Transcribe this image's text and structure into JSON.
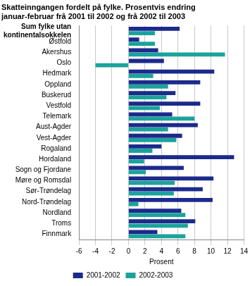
{
  "chart_data": {
    "type": "bar",
    "orientation": "horizontal",
    "title": [
      "Skatteinngangen fordelt på fylke. Prosentvis endring",
      "januar-februar frå 2001 til 2002 og frå 2002 til 2003"
    ],
    "x_label": "Prosent",
    "categories": [
      "Sum fylke utan kontinentalsokkelen",
      "Østfold",
      "Akershus",
      "Oslo",
      "Hedmark",
      "Oppland",
      "Buskerud",
      "Vestfold",
      "Telemark",
      "Aust-Agder",
      "Vest-Agder",
      "Rogaland",
      "Hordaland",
      "Sogn og Fjordane",
      "Møre og Romsdal",
      "Sør-Trøndelag",
      "Nord-Trøndelag",
      "Nordland",
      "Troms",
      "Finnmark"
    ],
    "series": [
      {
        "name": "2001-2002",
        "color": "#1c2a8c",
        "values": [
          6.2,
          1.3,
          3.6,
          4.3,
          10.4,
          8.7,
          5.7,
          8.7,
          5.3,
          8.4,
          6.5,
          4.0,
          12.8,
          6.7,
          10.3,
          9.0,
          10.2,
          6.4,
          8.1,
          3.5
        ]
      },
      {
        "name": "2002-2003",
        "color": "#1aa39c",
        "values": [
          3.2,
          3.2,
          11.7,
          -4.0,
          3.0,
          4.8,
          4.6,
          3.8,
          8.0,
          4.8,
          5.8,
          2.9,
          1.9,
          2.1,
          5.6,
          5.5,
          1.2,
          6.9,
          7.2,
          6.9
        ]
      }
    ],
    "xlim": [
      -6,
      14
    ],
    "xticks": [
      -6,
      -4,
      -2,
      0,
      2,
      4,
      6,
      8,
      10,
      12,
      14
    ],
    "grid": true,
    "legend": "bottom"
  }
}
